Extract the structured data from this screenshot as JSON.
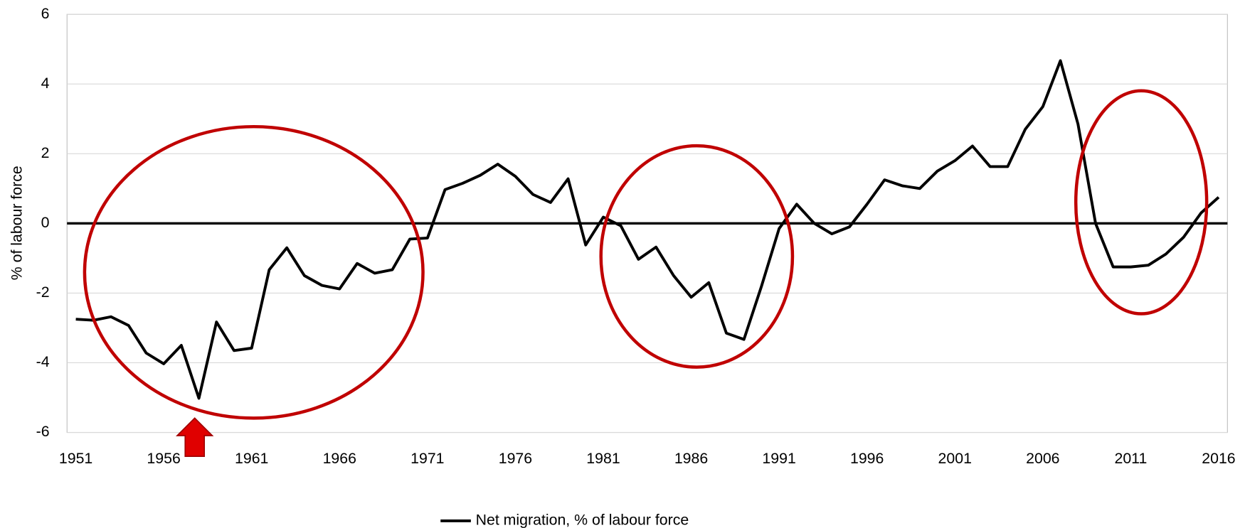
{
  "chart_data": {
    "type": "line",
    "y_label": "% of labour force",
    "x": [
      1951,
      1952,
      1953,
      1954,
      1955,
      1956,
      1957,
      1958,
      1959,
      1960,
      1961,
      1962,
      1963,
      1964,
      1965,
      1966,
      1967,
      1968,
      1969,
      1970,
      1971,
      1972,
      1973,
      1974,
      1975,
      1976,
      1977,
      1978,
      1979,
      1980,
      1981,
      1982,
      1983,
      1984,
      1985,
      1986,
      1987,
      1988,
      1989,
      1990,
      1991,
      1992,
      1993,
      1994,
      1995,
      1996,
      1997,
      1998,
      1999,
      2000,
      2001,
      2002,
      2003,
      2004,
      2005,
      2006,
      2007,
      2008,
      2009,
      2010,
      2011,
      2012,
      2013,
      2014,
      2015,
      2016
    ],
    "series": [
      {
        "name": "Net migration, % of labour force",
        "color": "#000000",
        "values": [
          -2.75,
          -2.78,
          -2.68,
          -2.93,
          -3.72,
          -4.03,
          -3.5,
          -5.02,
          -2.83,
          -3.65,
          -3.58,
          -1.33,
          -0.7,
          -1.5,
          -1.78,
          -1.88,
          -1.15,
          -1.43,
          -1.33,
          -0.45,
          -0.42,
          0.97,
          1.15,
          1.38,
          1.7,
          1.35,
          0.83,
          0.6,
          1.28,
          -0.62,
          0.18,
          -0.07,
          -1.03,
          -0.68,
          -1.5,
          -2.12,
          -1.7,
          -3.15,
          -3.33,
          -1.8,
          -0.15,
          0.55,
          0.0,
          -0.3,
          -0.1,
          0.55,
          1.25,
          1.08,
          1.0,
          1.5,
          1.8,
          2.22,
          1.63,
          1.63,
          2.7,
          3.35,
          4.67,
          2.85,
          0.0,
          -1.25,
          -1.25,
          -1.2,
          -0.88,
          -0.4,
          0.3,
          0.75
        ]
      }
    ],
    "xlim": [
      1950.5,
      2016.5
    ],
    "xticks": [
      1951,
      1956,
      1961,
      1966,
      1971,
      1976,
      1981,
      1986,
      1991,
      1996,
      2001,
      2006,
      2011,
      2016
    ],
    "ylim": [
      -6,
      6
    ],
    "yticks": [
      -6,
      -4,
      -2,
      0,
      2,
      4,
      6
    ],
    "grid": true,
    "legend": "bottom"
  }
}
